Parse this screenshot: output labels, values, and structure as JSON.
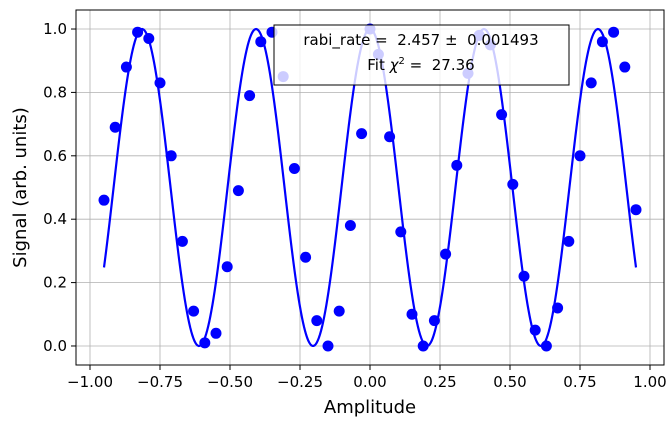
{
  "chart_data": {
    "type": "scatter",
    "xlabel": "Amplitude",
    "ylabel": "Signal (arb. units)",
    "xlim": [
      -1.05,
      1.05
    ],
    "ylim": [
      -0.06,
      1.06
    ],
    "grid": true,
    "xticks": [
      -1.0,
      -0.75,
      -0.5,
      -0.25,
      0.0,
      0.25,
      0.5,
      0.75,
      1.0
    ],
    "xtick_labels": [
      "−1.00",
      "−0.75",
      "−0.50",
      "−0.25",
      "0.00",
      "0.25",
      "0.50",
      "0.75",
      "1.00"
    ],
    "yticks": [
      0.0,
      0.2,
      0.4,
      0.6,
      0.8,
      1.0
    ],
    "ytick_labels": [
      "0.0",
      "0.2",
      "0.4",
      "0.6",
      "0.8",
      "1.0"
    ],
    "series": [
      {
        "kind": "scatter",
        "color": "#0000ff",
        "x": [
          -0.95,
          -0.91,
          -0.87,
          -0.83,
          -0.79,
          -0.75,
          -0.71,
          -0.67,
          -0.63,
          -0.59,
          -0.55,
          -0.51,
          -0.47,
          -0.43,
          -0.39,
          -0.35,
          -0.31,
          -0.27,
          -0.23,
          -0.19,
          -0.15,
          -0.11,
          -0.07,
          -0.03,
          0.0,
          0.03,
          0.07,
          0.11,
          0.15,
          0.19,
          0.23,
          0.27,
          0.31,
          0.35,
          0.39,
          0.43,
          0.47,
          0.51,
          0.55,
          0.59,
          0.63,
          0.67,
          0.71,
          0.75,
          0.79,
          0.83,
          0.87,
          0.91,
          0.95
        ],
        "y": [
          0.46,
          0.69,
          0.88,
          0.99,
          0.97,
          0.83,
          0.6,
          0.33,
          0.11,
          0.01,
          0.04,
          0.25,
          0.49,
          0.79,
          0.96,
          0.99,
          0.85,
          0.56,
          0.28,
          0.08,
          0.0,
          0.11,
          0.38,
          0.67,
          1.0,
          0.92,
          0.66,
          0.36,
          0.1,
          0.0,
          0.08,
          0.29,
          0.57,
          0.86,
          0.98,
          0.95,
          0.73,
          0.51,
          0.22,
          0.05,
          0.0,
          0.12,
          0.33,
          0.6,
          0.83,
          0.96,
          0.99,
          0.88,
          0.43
        ]
      },
      {
        "kind": "fit-line",
        "color": "#0000ff",
        "frequency": 2.457,
        "x_range": [
          -0.95,
          0.95
        ]
      }
    ],
    "annotation": {
      "line1": "rabi_rate =  2.457 ±  0.001493",
      "line2_prefix": "Fit ",
      "line2_chi": "χ",
      "line2_sup": "2",
      "line2_suffix": " =  27.36"
    }
  }
}
